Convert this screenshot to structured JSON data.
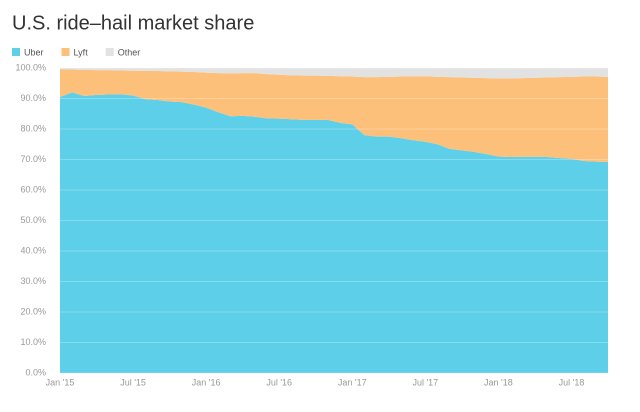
{
  "chart_data": {
    "type": "stacked_area",
    "title": "U.S. ride–hail market share",
    "categories": [
      "Jan '15",
      null,
      null,
      null,
      null,
      null,
      "Jul '15",
      null,
      null,
      null,
      null,
      null,
      "Jan '16",
      null,
      null,
      null,
      null,
      null,
      "Jul '16",
      null,
      null,
      null,
      null,
      null,
      "Jan '17",
      null,
      null,
      null,
      null,
      null,
      "Jul '17",
      null,
      null,
      null,
      null,
      null,
      "Jan '18",
      null,
      null,
      null,
      null,
      null,
      "Jul '18",
      null,
      null,
      null
    ],
    "series": [
      {
        "name": "Uber",
        "color": "#5ecfe8",
        "values": [
          90.5,
          92,
          90.8,
          91.2,
          91.3,
          91.4,
          91,
          89.8,
          89.5,
          89,
          88.8,
          88,
          87,
          85.5,
          84.2,
          84.3,
          84,
          83.5,
          83.4,
          83.2,
          83,
          83,
          83,
          82,
          81.5,
          78,
          77.5,
          77.5,
          77,
          76.3,
          75.8,
          75,
          73.5,
          73,
          72.5,
          71.8,
          71,
          70.8,
          70.9,
          70.9,
          70.8,
          70.5,
          70.2,
          69.5,
          69.3,
          69.2
        ]
      },
      {
        "name": "Lyft",
        "color": "#fdc07a",
        "values": [
          9.0,
          7.5,
          8.6,
          8.1,
          8.0,
          7.8,
          8.1,
          9.2,
          9.5,
          9.9,
          10.0,
          10.7,
          11.5,
          12.8,
          14.0,
          14.0,
          14.3,
          14.5,
          14.4,
          14.4,
          14.5,
          14.5,
          14.4,
          15.3,
          15.7,
          19.0,
          19.5,
          19.6,
          20.2,
          20.9,
          21.5,
          22.1,
          23.5,
          23.9,
          24.3,
          24.9,
          25.6,
          25.8,
          25.8,
          25.9,
          26.1,
          26.5,
          26.9,
          27.7,
          27.9,
          27.9
        ]
      },
      {
        "name": "Other",
        "color": "#e2e2e2",
        "values": [
          0.5,
          0.5,
          0.6,
          0.7,
          0.7,
          0.8,
          0.9,
          1.0,
          1.0,
          1.1,
          1.2,
          1.3,
          1.5,
          1.7,
          1.8,
          1.7,
          1.7,
          2.0,
          2.2,
          2.4,
          2.5,
          2.5,
          2.6,
          2.7,
          2.8,
          3.0,
          3.0,
          2.9,
          2.8,
          2.8,
          2.7,
          2.9,
          3.0,
          3.1,
          3.2,
          3.3,
          3.4,
          3.4,
          3.3,
          3.2,
          3.1,
          3.0,
          2.9,
          2.8,
          2.8,
          2.9
        ]
      }
    ],
    "ylim": [
      0,
      100
    ],
    "yticks": [
      {
        "value": 0,
        "label": "0.0%"
      },
      {
        "value": 10,
        "label": "10.0%"
      },
      {
        "value": 20,
        "label": "20.0%"
      },
      {
        "value": 30,
        "label": "30.0%"
      },
      {
        "value": 40,
        "label": "40.0%"
      },
      {
        "value": 50,
        "label": "50.0%"
      },
      {
        "value": 60,
        "label": "60.0%"
      },
      {
        "value": 70,
        "label": "70.0%"
      },
      {
        "value": 80,
        "label": "80.0%"
      },
      {
        "value": 90,
        "label": "90.0%"
      },
      {
        "value": 100,
        "label": "100.0%"
      }
    ],
    "grid": true
  }
}
